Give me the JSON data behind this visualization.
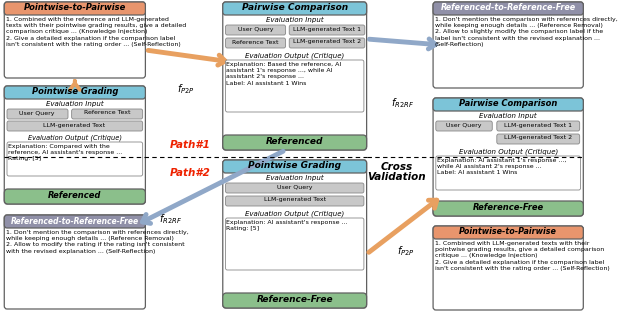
{
  "bg_color": "#ffffff",
  "orange_hdr": "#E8956D",
  "blue_hdr": "#7CC4D8",
  "gray_hdr": "#9090A8",
  "green_lbl": "#8BBF8B",
  "btn_gray": "#C8C8C8",
  "white": "#FFFFFF",
  "border": "#606060",
  "arrow_orange": "#E8A060",
  "arrow_blue": "#90A8C8",
  "tl": {
    "title": "Pointwise-to-Pairwise",
    "body": "1. Combined with the reference and LLM-generated\ntexts with their pointwise grading results, give a detailed\ncomparison critique ... (Knowledge Injection)\n2. Give a detailed explanation if the comparison label\nisn't consistent with the rating order ... (Self-Reflection)"
  },
  "ml": {
    "title": "Pointwise Grading",
    "ei": "Evaluation Input",
    "b1": "User Query",
    "b2": "Reference Text",
    "b3": "LLM-generated Text",
    "eo": "Evaluation Output (Critique)",
    "crit": "Explanation: Compared with the\nreference, AI assistant's response ...\nRating: [5]",
    "lbl": "Referenced"
  },
  "bl": {
    "title": "Referenced-to-Reference-Free",
    "body": "1. Don't mention the comparison with references directly,\nwhile keeping enough details ... (Reference Removal)\n2. Allow to modify the rating if the rating isn't consistent\nwith the revised explanation ... (Self-Reflection)"
  },
  "tc": {
    "title": "Pairwise Comparison",
    "ei": "Evaluation Input",
    "b1": "User Query",
    "b2": "LLM-generated Text 1",
    "b3": "Reference Text",
    "b4": "LLM-generated Text 2",
    "eo": "Evaluation Output (Critique)",
    "crit": "Explanation: Based the reference, AI\nassistant 1's response ..., while AI\nassistant 2's response ...\nLabel: AI assistant 1 Wins",
    "lbl": "Referenced"
  },
  "bc": {
    "title": "Pointwise Grading",
    "ei": "Evaluation Input",
    "b1": "User Query",
    "b2": "LLM-generated Text",
    "eo": "Evaluation Output (Critique)",
    "crit": "Explanation: AI assistant's response ...\nRating: [5]",
    "lbl": "Reference-Free"
  },
  "tr": {
    "title": "Referenced-to-Reference-Free",
    "body": "1. Don't mention the comparison with references directly,\nwhile keeping enough details ... (Reference Removal)\n2. Allow to slightly modify the comparison label if the\nlabel isn't consistent with the revised explanation ...\n(Self-Reflection)"
  },
  "mr": {
    "title": "Pairwise Comparison",
    "ei": "Evaluation Input",
    "b1": "User Query",
    "b2": "LLM-generated Text 1",
    "b3": "LLM-generated Text 2",
    "eo": "Evaluation Output (Critique)",
    "crit": "Explanation: AI assistant 1's response ...,\nwhile AI assistant 2's response ...\nLabel: AI assistant 1 Wins",
    "lbl": "Reference-Free"
  },
  "br": {
    "title": "Pointwise-to-Pairwise",
    "body": "1. Combined with LLM-generated texts with their\npointwise grading results, give a detailed comparison\ncritique ... (Knowledge Injection)\n2. Give a detailed explanation if the comparison label\nisn't consistent with the rating order ... (Self-Reflection)"
  }
}
